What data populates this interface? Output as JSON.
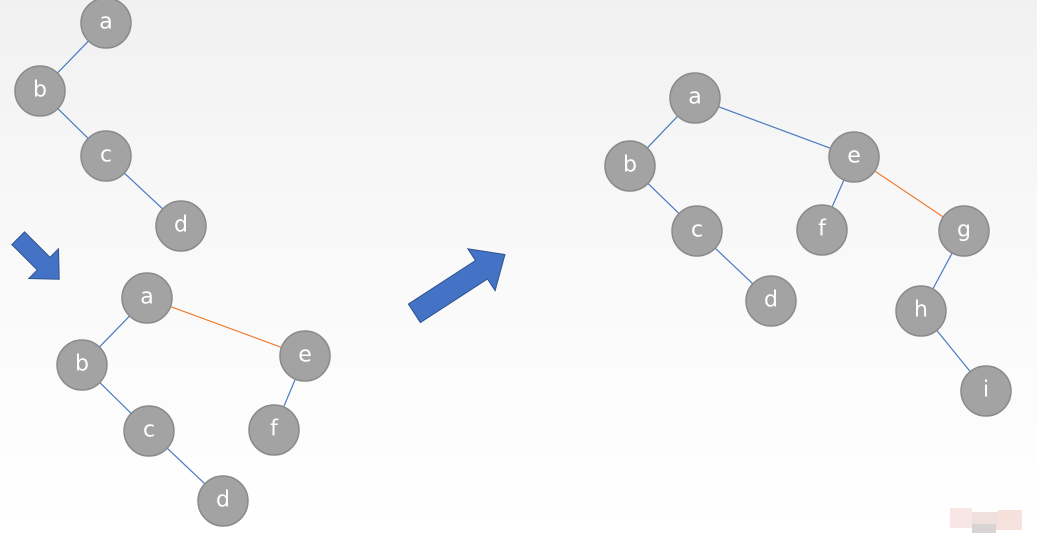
{
  "colors": {
    "node_fill": "#a3a3a3",
    "node_stroke": "#8a8a8a",
    "label": "#ffffff",
    "edge_normal": "#4a78c4",
    "edge_new": "#ed7d31",
    "arrow": "#4472c4"
  },
  "icons": [
    "arrow-down-right-icon",
    "arrow-up-right-icon"
  ],
  "trees": [
    {
      "name": "tree-step-1",
      "nodes": [
        {
          "id": "a",
          "label": "a"
        },
        {
          "id": "b",
          "label": "b"
        },
        {
          "id": "c",
          "label": "c"
        },
        {
          "id": "d",
          "label": "d"
        }
      ],
      "edges": [
        {
          "from": "a",
          "to": "b",
          "kind": "normal"
        },
        {
          "from": "b",
          "to": "c",
          "kind": "normal"
        },
        {
          "from": "c",
          "to": "d",
          "kind": "normal"
        }
      ]
    },
    {
      "name": "tree-step-2",
      "nodes": [
        {
          "id": "a",
          "label": "a"
        },
        {
          "id": "b",
          "label": "b"
        },
        {
          "id": "c",
          "label": "c"
        },
        {
          "id": "d",
          "label": "d"
        },
        {
          "id": "e",
          "label": "e"
        },
        {
          "id": "f",
          "label": "f"
        }
      ],
      "edges": [
        {
          "from": "a",
          "to": "b",
          "kind": "normal"
        },
        {
          "from": "b",
          "to": "c",
          "kind": "normal"
        },
        {
          "from": "c",
          "to": "d",
          "kind": "normal"
        },
        {
          "from": "a",
          "to": "e",
          "kind": "new"
        },
        {
          "from": "e",
          "to": "f",
          "kind": "normal"
        }
      ]
    },
    {
      "name": "tree-step-3",
      "nodes": [
        {
          "id": "a",
          "label": "a"
        },
        {
          "id": "b",
          "label": "b"
        },
        {
          "id": "c",
          "label": "c"
        },
        {
          "id": "d",
          "label": "d"
        },
        {
          "id": "e",
          "label": "e"
        },
        {
          "id": "f",
          "label": "f"
        },
        {
          "id": "g",
          "label": "g"
        },
        {
          "id": "h",
          "label": "h"
        },
        {
          "id": "i",
          "label": "i"
        }
      ],
      "edges": [
        {
          "from": "a",
          "to": "b",
          "kind": "normal"
        },
        {
          "from": "b",
          "to": "c",
          "kind": "normal"
        },
        {
          "from": "c",
          "to": "d",
          "kind": "normal"
        },
        {
          "from": "a",
          "to": "e",
          "kind": "normal"
        },
        {
          "from": "e",
          "to": "f",
          "kind": "normal"
        },
        {
          "from": "e",
          "to": "g",
          "kind": "new"
        },
        {
          "from": "g",
          "to": "h",
          "kind": "normal"
        },
        {
          "from": "h",
          "to": "i",
          "kind": "normal"
        }
      ]
    }
  ]
}
